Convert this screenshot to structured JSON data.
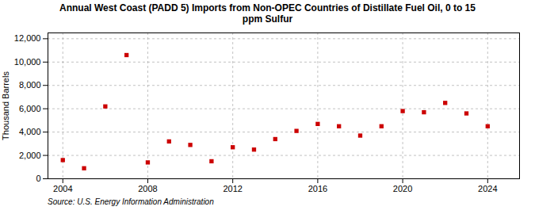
{
  "chart_data": {
    "type": "scatter",
    "title": "Annual West Coast (PADD 5) Imports from Non-OPEC Countries of Distillate Fuel Oil, 0 to 15\nppm Sulfur",
    "ylabel": "Thousand Barrels",
    "source": "Source: U.S. Energy Information Administration",
    "x": [
      2004,
      2005,
      2006,
      2007,
      2008,
      2009,
      2010,
      2011,
      2012,
      2013,
      2014,
      2015,
      2016,
      2017,
      2018,
      2019,
      2020,
      2021,
      2022,
      2023,
      2024
    ],
    "values": [
      1600,
      900,
      6200,
      10600,
      1400,
      3200,
      2900,
      1500,
      2700,
      2500,
      3400,
      4100,
      4700,
      4500,
      3700,
      4500,
      5800,
      5700,
      6500,
      5600,
      4500
    ],
    "color": "#cc0000",
    "marker": "square",
    "xlim": [
      2003.3,
      2025.5
    ],
    "ylim": [
      0,
      12500
    ],
    "xticks": [
      2004,
      2008,
      2012,
      2016,
      2020,
      2024
    ],
    "yticks": [
      0,
      {
        "value": 2000,
        "label": "2,000"
      },
      {
        "value": 4000,
        "label": "4,000"
      },
      {
        "value": 6000,
        "label": "6,000"
      },
      {
        "value": 8000,
        "label": "8,000"
      },
      {
        "value": 10000,
        "label": "10,000"
      },
      {
        "value": 12000,
        "label": "12,000"
      }
    ],
    "grid": true
  }
}
